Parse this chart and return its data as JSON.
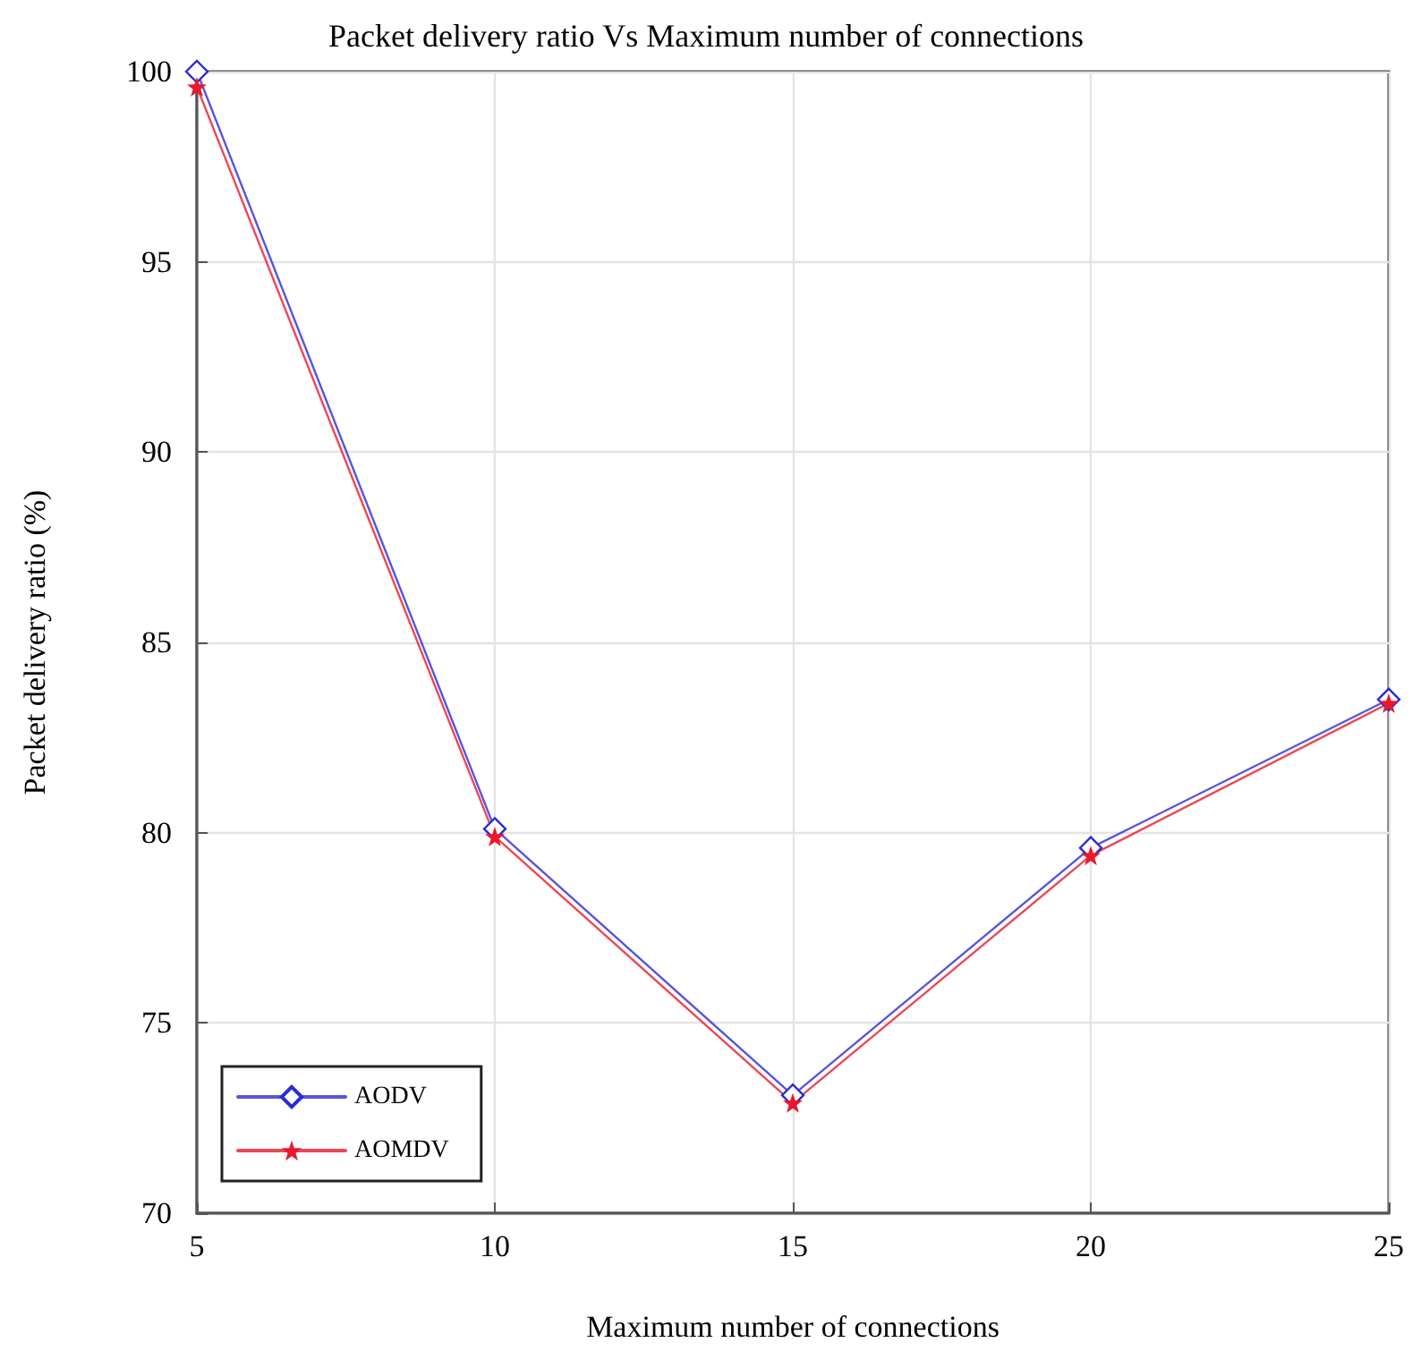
{
  "chart_data": {
    "type": "line",
    "title": "Packet delivery ratio Vs Maximum number of connections",
    "xlabel": "Maximum number of connections",
    "ylabel": "Packet delivery ratio (%)",
    "x": [
      5,
      10,
      15,
      20,
      25
    ],
    "series": [
      {
        "name": "AODV",
        "color": "#2b2bd6",
        "marker": "diamond",
        "values": [
          100,
          80.1,
          73.1,
          79.6,
          83.5
        ]
      },
      {
        "name": "AOMDV",
        "color": "#e8192c",
        "marker": "star",
        "values": [
          99.6,
          79.9,
          72.9,
          79.4,
          83.4
        ]
      }
    ],
    "xlim": [
      5,
      25
    ],
    "xticks": [
      5,
      10,
      15,
      20,
      25
    ],
    "ylim": [
      70,
      100
    ],
    "yticks": [
      70,
      75,
      80,
      85,
      90,
      95,
      100
    ],
    "grid": true,
    "legend": "bottom left",
    "line_style": "solid"
  }
}
